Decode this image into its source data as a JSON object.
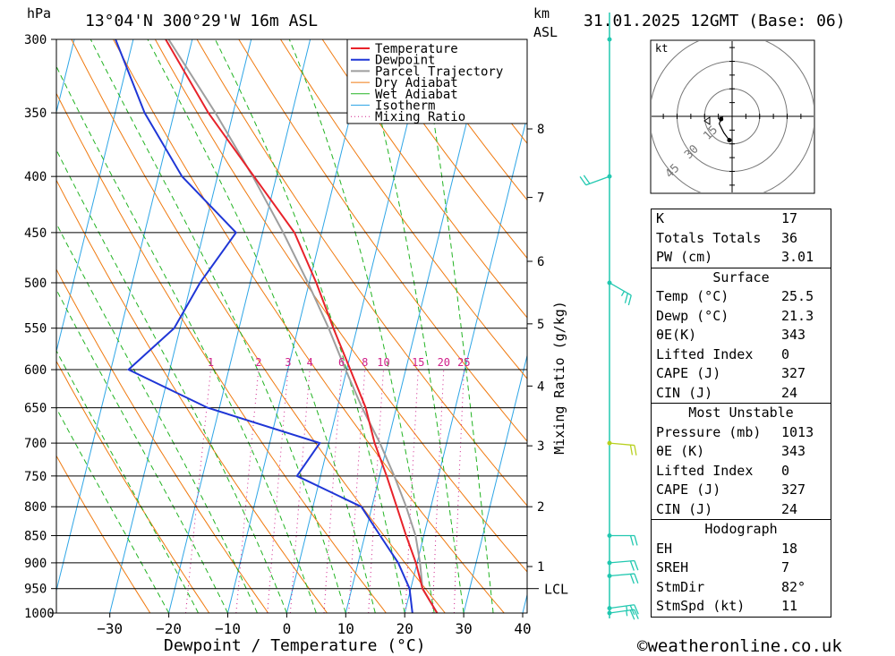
{
  "header": {
    "pressure_unit": "hPa",
    "location": "13°04'N 300°29'W 16m ASL",
    "km_label": "km",
    "asl_label": "ASL",
    "datetime": "31.01.2025 12GMT (Base: 06)"
  },
  "colors": {
    "temperature": "#e8222a",
    "dewpoint": "#1f36d6",
    "parcel": "#9e9e9e",
    "dry_adiabat": "#f07a10",
    "wet_adiabat": "#22b322",
    "isotherm": "#2fa6e6",
    "mixing_ratio": "#d0208a",
    "wind_barb": "#22c8b0"
  },
  "chart_data": {
    "type": "line",
    "title": "13°04'N 300°29'W 16m ASL",
    "xlabel": "Dewpoint / Temperature (°C)",
    "ylabel": "hPa",
    "y_scale": "log",
    "xlim": [
      -40,
      40
    ],
    "ylim": [
      1000,
      300
    ],
    "x_ticks": [
      "−30",
      "−20",
      "−10",
      "0",
      "10",
      "20",
      "30",
      "40"
    ],
    "x_tick_values": [
      -30,
      -20,
      -10,
      0,
      10,
      20,
      30,
      40
    ],
    "pressure_levels": [
      300,
      350,
      400,
      450,
      500,
      550,
      600,
      650,
      700,
      750,
      800,
      850,
      900,
      950,
      1000
    ],
    "km_ticks": [
      {
        "label": "1",
        "p": 907
      },
      {
        "label": "2",
        "p": 800
      },
      {
        "label": "3",
        "p": 704
      },
      {
        "label": "4",
        "p": 621
      },
      {
        "label": "5",
        "p": 545
      },
      {
        "label": "6",
        "p": 478
      },
      {
        "label": "7",
        "p": 418
      },
      {
        "label": "8",
        "p": 362
      }
    ],
    "lcl": {
      "label": "LCL",
      "p": 950
    },
    "mixing_ratio_axis_label": "Mixing Ratio (g/kg)",
    "mixing_ratio_labels": [
      "1",
      "2",
      "3",
      "4",
      "6",
      "8",
      "10",
      "15",
      "20",
      "25"
    ],
    "mixing_ratio_values": [
      1,
      2,
      3,
      4,
      6,
      8,
      10,
      15,
      20,
      25
    ],
    "mixing_ratio_label_p": 600,
    "legend_location": "top-right",
    "legend": [
      "Temperature",
      "Dewpoint",
      "Parcel Trajectory",
      "Dry Adiabat",
      "Wet Adiabat",
      "Isotherm",
      "Mixing Ratio"
    ],
    "series": [
      {
        "name": "Temperature",
        "p": [
          1000,
          950,
          900,
          850,
          800,
          750,
          700,
          650,
          600,
          550,
          500,
          450,
          400,
          350,
          300
        ],
        "t": [
          25.5,
          22.0,
          19.8,
          17.0,
          14.2,
          11.2,
          7.8,
          4.8,
          0.6,
          -4.0,
          -8.8,
          -14.6,
          -23.8,
          -34.2,
          -44.5
        ]
      },
      {
        "name": "Dewpoint",
        "p": [
          1000,
          950,
          900,
          850,
          800,
          750,
          700,
          650,
          600,
          550,
          500,
          450,
          400,
          350,
          300
        ],
        "t": [
          21.3,
          19.8,
          16.8,
          12.6,
          8.2,
          -4.0,
          -1.5,
          -22.0,
          -37.0,
          -31.0,
          -28.5,
          -24.5,
          -36.0,
          -45.0,
          -53.0
        ]
      },
      {
        "name": "Parcel Trajectory",
        "p": [
          1000,
          950,
          900,
          850,
          800,
          750,
          700,
          650,
          600,
          550,
          500,
          450,
          400,
          350,
          300
        ],
        "t": [
          25.5,
          22.0,
          20.5,
          18.6,
          15.8,
          12.5,
          8.7,
          4.2,
          -0.2,
          -4.8,
          -10.2,
          -16.5,
          -24.0,
          -33.0,
          -44.0
        ]
      }
    ],
    "dry_adiabats_theta_K": [
      250,
      260,
      270,
      280,
      290,
      300,
      310,
      320,
      330,
      340,
      350,
      360,
      370,
      380,
      390,
      400,
      410,
      420,
      430,
      440,
      450
    ],
    "wet_adiabats_start_C": [
      -20,
      -15,
      -10,
      -5,
      0,
      5,
      10,
      15,
      20,
      25,
      30,
      35
    ],
    "isotherms_C": [
      -110,
      -100,
      -90,
      -80,
      -70,
      -60,
      -50,
      -40,
      -30,
      -20,
      -10,
      0,
      10,
      20,
      30,
      40
    ],
    "wind_barbs": [
      {
        "p": 1000,
        "dir": 82,
        "kt": 15
      },
      {
        "p": 990,
        "dir": 82,
        "kt": 15
      },
      {
        "p": 925,
        "dir": 85,
        "kt": 20
      },
      {
        "p": 900,
        "dir": 85,
        "kt": 20
      },
      {
        "p": 850,
        "dir": 90,
        "kt": 20
      },
      {
        "p": 700,
        "dir": 95,
        "kt": 20
      },
      {
        "p": 500,
        "dir": 120,
        "kt": 15
      },
      {
        "p": 400,
        "dir": 250,
        "kt": 20
      },
      {
        "p": 300,
        "dir": 0,
        "kt": 0
      }
    ],
    "hodograph": {
      "unit": "kt",
      "ring_labels": [
        "15",
        "30",
        "45"
      ],
      "ring_values_kt": [
        15,
        30,
        45
      ],
      "points": [
        [
          -10,
          0
        ],
        [
          -12,
          -3
        ],
        [
          -14,
          -8
        ],
        [
          -9,
          -18
        ],
        [
          -3,
          -26
        ]
      ]
    }
  },
  "indices": {
    "top": [
      {
        "key": "K",
        "value": "17"
      },
      {
        "key": "Totals Totals",
        "value": "36"
      },
      {
        "key": "PW (cm)",
        "value": "3.01"
      }
    ],
    "surface": {
      "title": "Surface",
      "rows": [
        {
          "key": "Temp (°C)",
          "value": "25.5"
        },
        {
          "key": "Dewp (°C)",
          "value": "21.3"
        },
        {
          "key": "θE(K)",
          "value": "343"
        },
        {
          "key": "Lifted Index",
          "value": "0"
        },
        {
          "key": "CAPE (J)",
          "value": "327"
        },
        {
          "key": "CIN (J)",
          "value": "24"
        }
      ]
    },
    "most_unstable": {
      "title": "Most Unstable",
      "rows": [
        {
          "key": "Pressure (mb)",
          "value": "1013"
        },
        {
          "key": "θE (K)",
          "value": "343"
        },
        {
          "key": "Lifted Index",
          "value": "0"
        },
        {
          "key": "CAPE (J)",
          "value": "327"
        },
        {
          "key": "CIN (J)",
          "value": "24"
        }
      ]
    },
    "hodograph": {
      "title": "Hodograph",
      "rows": [
        {
          "key": "EH",
          "value": "18"
        },
        {
          "key": "SREH",
          "value": "7"
        },
        {
          "key": "StmDir",
          "value": "82°"
        },
        {
          "key": "StmSpd (kt)",
          "value": "11"
        }
      ]
    }
  },
  "footer": {
    "copyright": "©weatheronline.co.uk"
  }
}
